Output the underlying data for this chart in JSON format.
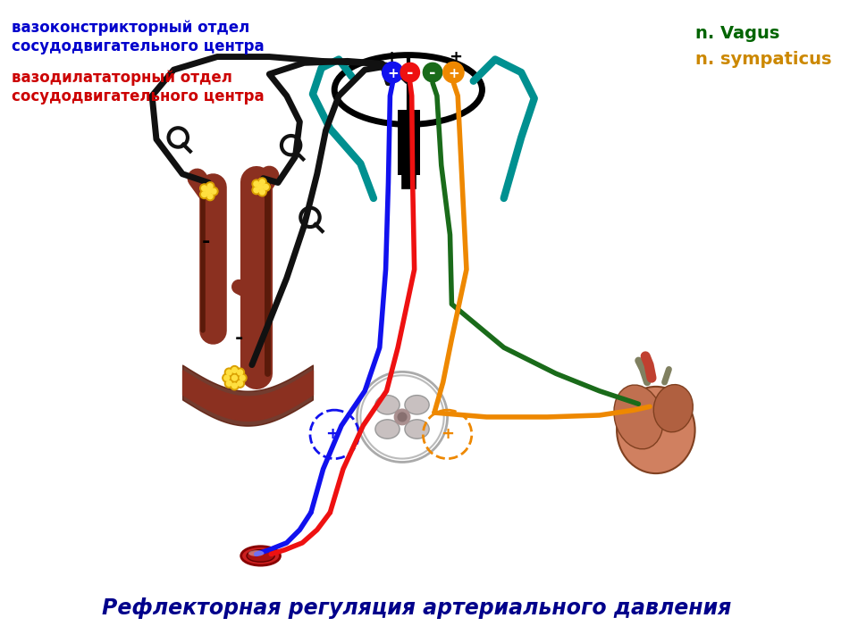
{
  "title": "Рефлекторная регуляция артериального давления",
  "title_color": "#00008B",
  "label_vasoconstrictor": "вазоконстрикторный отдел\nсосудодвигательного центра",
  "label_vasodilator": "вазодилататорный отдел\nсосудодвигательного центра",
  "label_vagus": "n. Vagus",
  "label_sympaticus": "n. sympaticus",
  "color_vasoconstrictor": "#0000CC",
  "color_vasodilator": "#CC0000",
  "color_vagus": "#006400",
  "color_sympaticus": "#CC8800",
  "color_black": "#111111",
  "color_teal": "#009090",
  "color_blue": "#1111EE",
  "color_red": "#EE1111",
  "color_green": "#1A6B1A",
  "color_orange": "#EE8800",
  "aorta_color": "#8B3020",
  "aorta_shadow": "#5A1A0A",
  "receptor_gold": "#DAA000",
  "receptor_yellow": "#FFE040",
  "bg_color": "#FFFFFF"
}
